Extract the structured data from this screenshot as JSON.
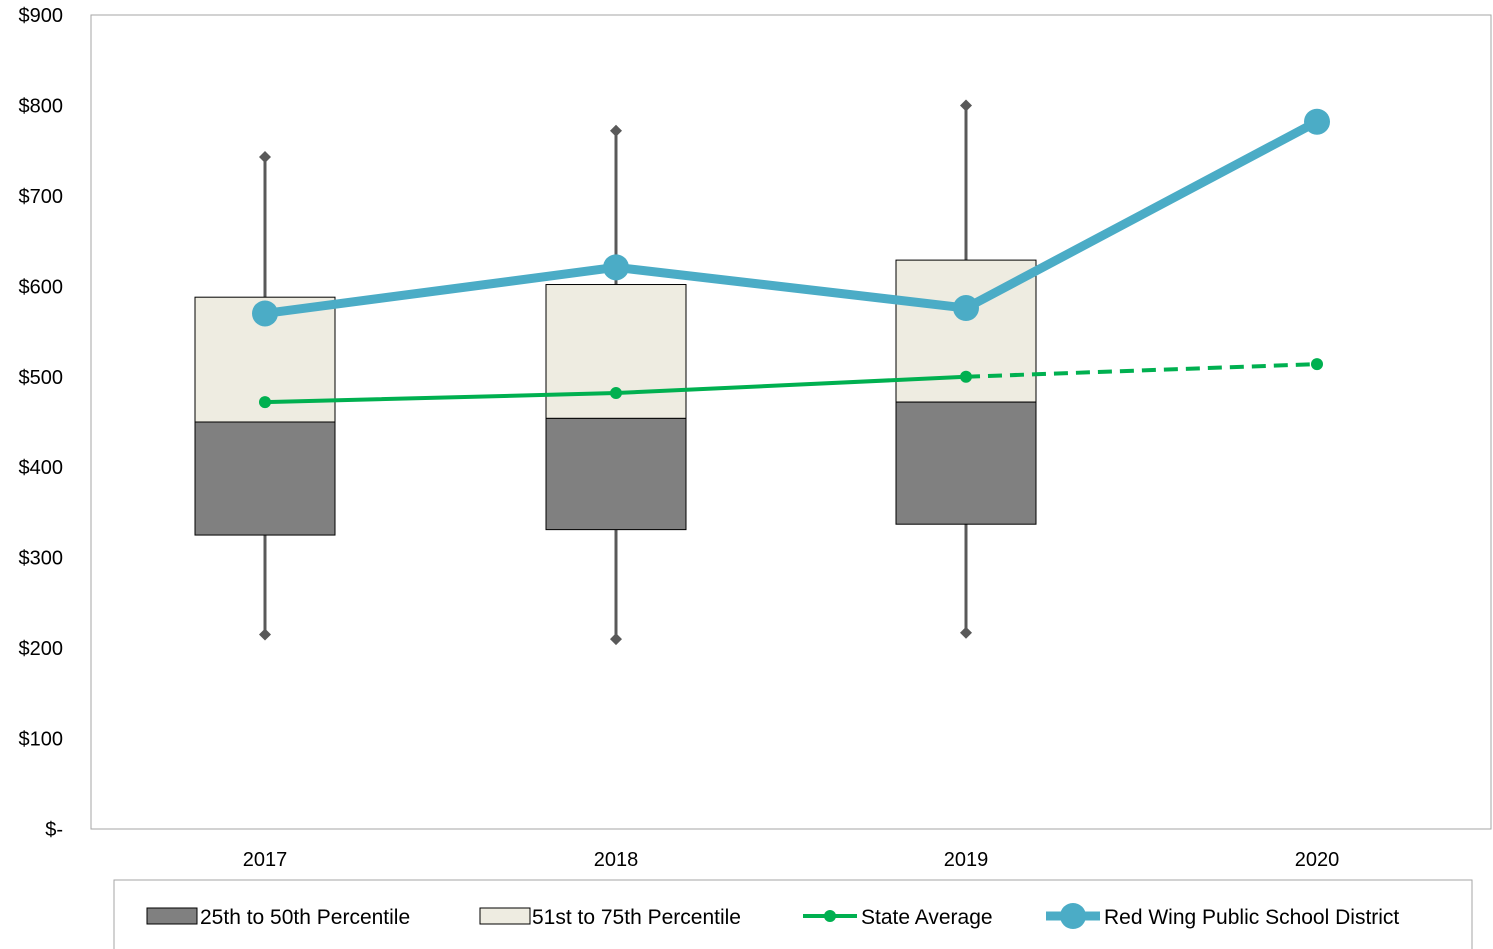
{
  "chart_data": {
    "type": "box",
    "title": "",
    "xlabel": "",
    "ylabel": "",
    "categories": [
      "2017",
      "2018",
      "2019",
      "2020"
    ],
    "ylim": [
      0,
      900
    ],
    "y_ticks": [
      0,
      100,
      200,
      300,
      400,
      500,
      600,
      700,
      800,
      900
    ],
    "y_tick_labels": [
      "$-",
      "$100",
      "$200",
      "$300",
      "$400",
      "$500",
      "$600",
      "$700",
      "$800",
      "$900"
    ],
    "grid": false,
    "legend_position": "bottom",
    "boxes": [
      {
        "category": "2017",
        "min": 215,
        "p25": 325,
        "median": 450,
        "p75": 588,
        "max": 743
      },
      {
        "category": "2018",
        "min": 210,
        "p25": 331,
        "median": 454,
        "p75": 602,
        "max": 772
      },
      {
        "category": "2019",
        "min": 217,
        "p25": 337,
        "median": 472,
        "p75": 629,
        "max": 800
      }
    ],
    "series": [
      {
        "name": "25th to 50th Percentile",
        "kind": "box-lower",
        "color": "#808080"
      },
      {
        "name": "51st to 75th Percentile",
        "kind": "box-upper",
        "color": "#EEECE1"
      },
      {
        "name": "State Average",
        "kind": "line",
        "color": "#00B050",
        "values": [
          472,
          482,
          500,
          514
        ],
        "dashed_from": "2019"
      },
      {
        "name": "Red Wing Public School District",
        "kind": "line",
        "color": "#4BACC6",
        "values": [
          570,
          621,
          576,
          782
        ]
      }
    ]
  }
}
